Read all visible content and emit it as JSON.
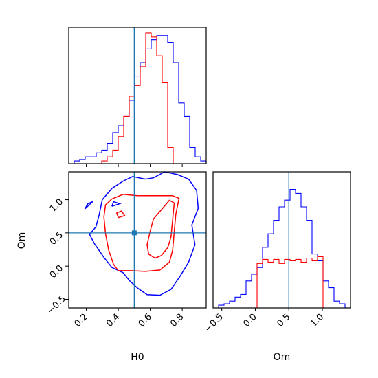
{
  "chart_data": {
    "type": "corner",
    "parameters": [
      "H0",
      "Om"
    ],
    "labels": {
      "x_bottom_left": "H0",
      "x_bottom_right": "Om",
      "y_left": "Om"
    },
    "truths": {
      "H0": 0.5,
      "Om": 0.5
    },
    "colors": {
      "series_a": "#0000ff",
      "series_b": "#ff0000",
      "truth": "#1f77b4"
    },
    "axes": {
      "H0": {
        "range": [
          0.09,
          0.95
        ],
        "ticks": [
          0.2,
          0.4,
          0.6,
          0.8
        ],
        "tick_labels": [
          "0.2",
          "0.4",
          "0.6",
          "0.8"
        ]
      },
      "Om_vertical": {
        "range": [
          -0.63,
          1.42
        ],
        "ticks": [
          -0.5,
          0.0,
          0.5,
          1.0
        ],
        "tick_labels": [
          "−0.5",
          "0.0",
          "0.5",
          "1.0"
        ]
      },
      "Om_horizontal": {
        "range": [
          -0.63,
          1.42
        ],
        "ticks": [
          -0.5,
          0.0,
          0.5,
          1.0
        ],
        "tick_labels": [
          "−0.5",
          "0.0",
          "0.5",
          "1.0"
        ]
      }
    },
    "hist_H0": {
      "edges": [
        0.09,
        0.1243,
        0.1587,
        0.1931,
        0.2275,
        0.2619,
        0.2963,
        0.3307,
        0.3651,
        0.3995,
        0.4339,
        0.4683,
        0.5027,
        0.5371,
        0.5715,
        0.6059,
        0.6403,
        0.6747,
        0.7091,
        0.7435,
        0.7779,
        0.8123,
        0.8467,
        0.8811,
        0.9155,
        0.95
      ],
      "series": [
        {
          "color": "#0000ff",
          "counts": [
            0,
            2,
            3,
            5,
            5,
            8,
            10,
            15,
            23,
            28,
            35,
            47,
            65,
            75,
            85,
            92,
            95,
            95,
            90,
            75,
            45,
            35,
            12,
            5,
            2
          ]
        },
        {
          "color": "#ff0000",
          "counts": [
            0,
            0,
            0,
            0,
            0,
            0,
            2,
            5,
            10,
            20,
            35,
            50,
            58,
            72,
            97,
            94,
            80,
            60,
            12,
            0,
            0,
            0,
            0,
            0,
            0
          ]
        }
      ],
      "ymax": 100
    },
    "hist_Om": {
      "edges": [
        -0.63,
        -0.548,
        -0.466,
        -0.384,
        -0.302,
        -0.22,
        -0.138,
        -0.056,
        0.026,
        0.108,
        0.19,
        0.272,
        0.354,
        0.436,
        0.518,
        0.6,
        0.682,
        0.764,
        0.846,
        0.928,
        1.01,
        1.092,
        1.174,
        1.256,
        1.338,
        1.42
      ],
      "series": [
        {
          "color": "#0000ff",
          "counts": [
            0,
            2,
            3,
            5,
            8,
            10,
            20,
            25,
            30,
            45,
            55,
            65,
            75,
            80,
            88,
            85,
            75,
            65,
            40,
            35,
            20,
            15,
            5,
            3,
            0
          ]
        },
        {
          "color": "#ff0000",
          "counts": [
            0,
            0,
            0,
            0,
            0,
            0,
            0,
            0,
            33,
            36,
            34,
            36,
            33,
            36,
            35,
            36,
            34,
            37,
            35,
            38,
            0,
            0,
            0,
            0,
            0
          ]
        }
      ],
      "ymax": 100
    },
    "contours": [
      {
        "color": "#0000ff",
        "points": [
          [
            0.43,
            1.28
          ],
          [
            0.49,
            1.35
          ],
          [
            0.57,
            1.31
          ],
          [
            0.62,
            1.33
          ],
          [
            0.69,
            1.42
          ],
          [
            0.77,
            1.38
          ],
          [
            0.84,
            1.31
          ],
          [
            0.89,
            1.14
          ],
          [
            0.9,
            0.87
          ],
          [
            0.86,
            0.62
          ],
          [
            0.88,
            0.32
          ],
          [
            0.84,
            0.06
          ],
          [
            0.79,
            -0.14
          ],
          [
            0.73,
            -0.35
          ],
          [
            0.66,
            -0.44
          ],
          [
            0.58,
            -0.43
          ],
          [
            0.52,
            -0.33
          ],
          [
            0.47,
            -0.22
          ],
          [
            0.43,
            -0.1
          ],
          [
            0.36,
            -0.02
          ],
          [
            0.31,
            0.13
          ],
          [
            0.25,
            0.34
          ],
          [
            0.22,
            0.48
          ],
          [
            0.26,
            0.59
          ],
          [
            0.28,
            0.77
          ],
          [
            0.3,
            1.0
          ],
          [
            0.36,
            1.17
          ],
          [
            0.43,
            1.28
          ]
        ]
      },
      {
        "color": "#0000ff",
        "points": [
          [
            0.19,
            0.86
          ],
          [
            0.24,
            0.97
          ],
          [
            0.21,
            0.94
          ],
          [
            0.19,
            0.86
          ]
        ]
      },
      {
        "color": "#0000ff",
        "points": [
          [
            0.36,
            0.9
          ],
          [
            0.41,
            0.94
          ],
          [
            0.37,
            0.97
          ],
          [
            0.36,
            0.9
          ]
        ]
      },
      {
        "color": "#ff0000",
        "points": [
          [
            0.36,
            1.01
          ],
          [
            0.43,
            1.08
          ],
          [
            0.52,
            1.06
          ],
          [
            0.6,
            1.06
          ],
          [
            0.68,
            1.06
          ],
          [
            0.74,
            1.06
          ],
          [
            0.78,
            1.02
          ],
          [
            0.76,
            0.78
          ],
          [
            0.75,
            0.52
          ],
          [
            0.74,
            0.24
          ],
          [
            0.72,
            0.06
          ],
          [
            0.66,
            -0.06
          ],
          [
            0.57,
            -0.08
          ],
          [
            0.48,
            -0.07
          ],
          [
            0.4,
            -0.07
          ],
          [
            0.37,
            0.03
          ],
          [
            0.34,
            0.24
          ],
          [
            0.32,
            0.49
          ],
          [
            0.31,
            0.74
          ],
          [
            0.32,
            0.92
          ],
          [
            0.36,
            1.01
          ]
        ]
      },
      {
        "color": "#ff0000",
        "points": [
          [
            0.58,
            0.32
          ],
          [
            0.6,
            0.53
          ],
          [
            0.62,
            0.71
          ],
          [
            0.67,
            0.85
          ],
          [
            0.72,
            0.99
          ],
          [
            0.75,
            0.95
          ],
          [
            0.74,
            0.7
          ],
          [
            0.73,
            0.44
          ],
          [
            0.71,
            0.28
          ],
          [
            0.67,
            0.16
          ],
          [
            0.63,
            0.12
          ],
          [
            0.59,
            0.18
          ],
          [
            0.58,
            0.32
          ]
        ]
      },
      {
        "color": "#ff0000",
        "points": [
          [
            0.4,
            0.73
          ],
          [
            0.44,
            0.76
          ],
          [
            0.42,
            0.83
          ],
          [
            0.39,
            0.8
          ],
          [
            0.4,
            0.73
          ]
        ]
      }
    ]
  }
}
